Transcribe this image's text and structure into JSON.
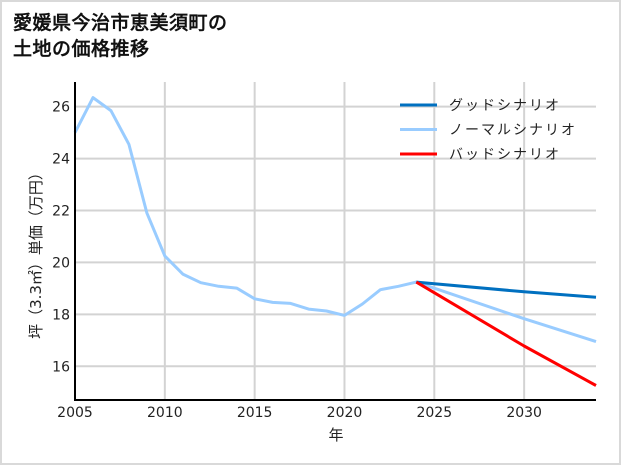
{
  "title": {
    "line1": "愛媛県今治市恵美須町の",
    "line2": "土地の価格推移"
  },
  "colors": {
    "good": "#0070c0",
    "normal": "#99ccff",
    "bad": "#ff0000",
    "grid": "#d3d3d3",
    "axis": "#000000",
    "frame": "#d9d9d9"
  },
  "chart_data": {
    "type": "line",
    "title": "愛媛県今治市恵美須町の土地の価格推移",
    "xlabel": "年",
    "ylabel": "坪（3.3㎡）単価（万円）",
    "xlim": [
      2005,
      2034
    ],
    "ylim": [
      14.7,
      26.95
    ],
    "xticks": [
      2005,
      2010,
      2015,
      2020,
      2025,
      2030
    ],
    "yticks": [
      16,
      18,
      20,
      22,
      24,
      26
    ],
    "grid": true,
    "legend_position": "upper right",
    "series": [
      {
        "name": "グッドシナリオ",
        "color": "#0070c0",
        "x": [
          2024,
          2030,
          2034
        ],
        "values": [
          19.24,
          18.87,
          18.66
        ]
      },
      {
        "name": "ノーマルシナリオ",
        "color": "#99ccff",
        "x": [
          2005,
          2006,
          2007,
          2008,
          2009,
          2010,
          2011,
          2012,
          2013,
          2014,
          2015,
          2016,
          2017,
          2018,
          2019,
          2020,
          2021,
          2022,
          2023,
          2024,
          2030,
          2034
        ],
        "values": [
          25.0,
          26.35,
          25.85,
          24.55,
          21.9,
          20.25,
          19.55,
          19.22,
          19.08,
          19.01,
          18.6,
          18.46,
          18.42,
          18.2,
          18.13,
          17.96,
          18.4,
          18.95,
          19.08,
          19.24,
          17.83,
          16.95
        ]
      },
      {
        "name": "バッドシナリオ",
        "color": "#ff0000",
        "x": [
          2024,
          2030,
          2034
        ],
        "values": [
          19.24,
          16.78,
          15.26
        ]
      }
    ]
  }
}
